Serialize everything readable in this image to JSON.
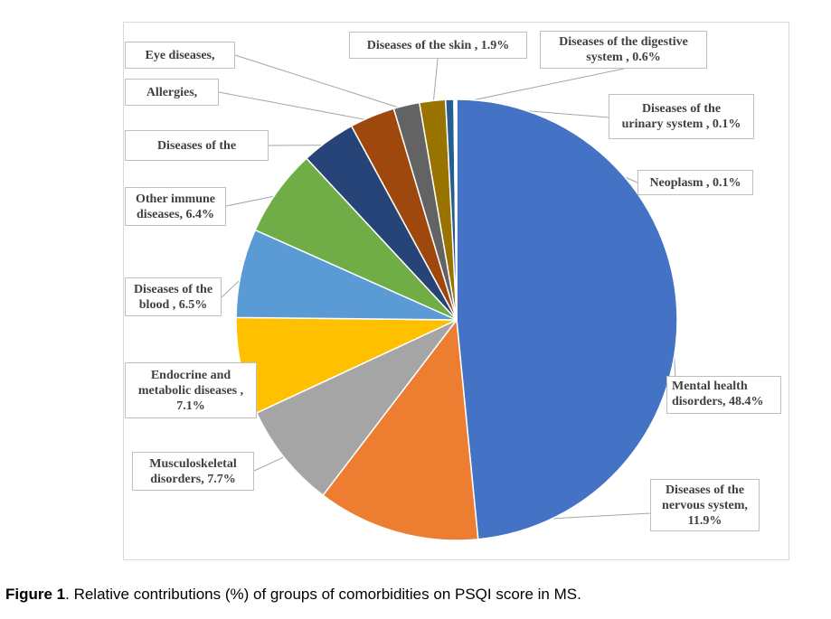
{
  "chart_data": {
    "type": "pie",
    "title": "",
    "slices": [
      {
        "label": "Mental health disorders, 48.4%",
        "value": 48.4,
        "color": "#4472c4"
      },
      {
        "label": "Diseases of the nervous system, 11.9%",
        "value": 11.9,
        "color": "#ed7d31"
      },
      {
        "label": "Musculoskeletal disorders, 7.7%",
        "value": 7.7,
        "color": "#a5a5a5"
      },
      {
        "label": "Endocrine and metabolic diseases , 7.1%",
        "value": 7.1,
        "color": "#ffc000"
      },
      {
        "label": "Diseases of the blood , 6.5%",
        "value": 6.5,
        "color": "#5b9bd5"
      },
      {
        "label": "Other immune diseases, 6.4%",
        "value": 6.4,
        "color": "#70ad47"
      },
      {
        "label": "Diseases of the",
        "value": 4.0,
        "color": "#264478"
      },
      {
        "label": "Allergies,",
        "value": 3.3,
        "color": "#9e480e"
      },
      {
        "label": "Eye diseases,",
        "value": 1.9,
        "color": "#636363"
      },
      {
        "label": "Diseases of the skin , 1.9%",
        "value": 1.9,
        "color": "#997300"
      },
      {
        "label": "Diseases of the digestive system , 0.6%",
        "value": 0.6,
        "color": "#255e91"
      },
      {
        "label": "Diseases of the urinary system , 0.1%",
        "value": 0.1,
        "color": "#43682b"
      },
      {
        "label": "Neoplasm , 0.1%",
        "value": 0.1,
        "color": "#698ed0"
      }
    ],
    "label_text": {
      "mental": [
        "Mental health",
        "disorders, 48.4%"
      ],
      "nervous": [
        "Diseases of the",
        "nervous system,",
        "11.9%"
      ],
      "musculo": [
        "Musculoskeletal",
        "disorders, 7.7%"
      ],
      "endocrine": [
        "Endocrine and",
        "metabolic diseases ,",
        "7.1%"
      ],
      "blood": [
        "Diseases of the",
        "blood , 6.5%"
      ],
      "immune": [
        "Other immune",
        "diseases, 6.4%"
      ],
      "diseases_of_the": [
        "Diseases of the"
      ],
      "allergies": [
        "Allergies,"
      ],
      "eye": [
        "Eye diseases,"
      ],
      "skin": [
        "Diseases of the skin , 1.9%"
      ],
      "digestive": [
        "Diseases of the digestive",
        "system , 0.6%"
      ],
      "urinary": [
        "Diseases of the",
        "urinary system , 0.1%"
      ],
      "neoplasm": [
        "Neoplasm , 0.1%"
      ]
    }
  },
  "caption": {
    "label": "Figure 1",
    "text": ". Relative contributions (%) of groups of comorbidities on PSQI score in MS."
  }
}
